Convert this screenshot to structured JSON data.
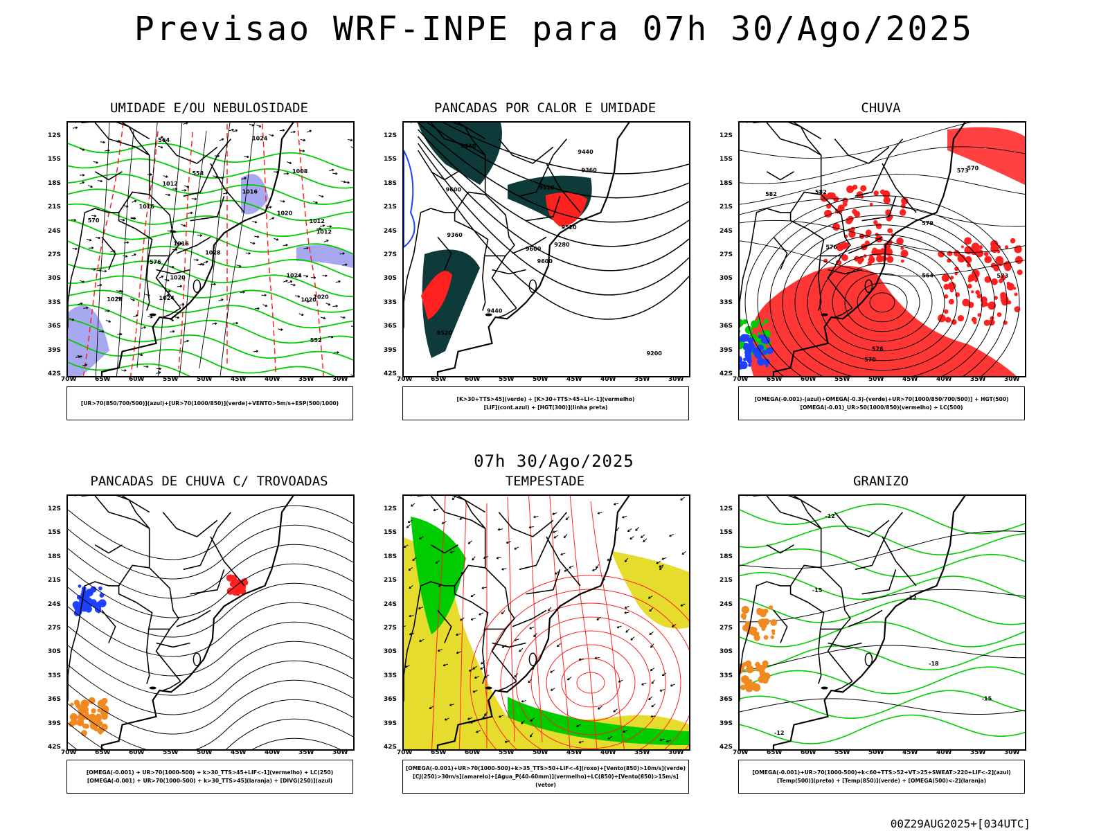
{
  "title": "Previsao WRF-INPE  para 07h 30/Ago/2025",
  "subtitle": "07h 30/Ago/2025",
  "footer": "00Z29AUG2025+[034UTC]",
  "axes": {
    "lat_ticks": [
      "12S",
      "15S",
      "18S",
      "21S",
      "24S",
      "27S",
      "30S",
      "33S",
      "36S",
      "39S",
      "42S"
    ],
    "lon_ticks": [
      "70W",
      "65W",
      "60W",
      "55W",
      "50W",
      "45W",
      "40W",
      "35W",
      "30W"
    ]
  },
  "colors": {
    "green": "#00cc00",
    "red": "#ff2020",
    "blue": "#2040ff",
    "lavender": "#a8a8f0",
    "dark_teal": "#0e3a3a",
    "yellow": "#e6dc2e",
    "orange": "#f08a20",
    "violet": "#6a6ae0"
  },
  "panels": [
    {
      "id": "umidade",
      "title": "UMIDADE E/OU NEBULOSIDADE",
      "legend": [
        "[UR>70(850/700/500)](azul)+[UR>70(1000/850)](verde)+VENTO>5m/s+ESP(500/1000)"
      ],
      "contour_labels": [
        "1012",
        "1012",
        "1016",
        "1012",
        "1016",
        "1020",
        "1020",
        "1024",
        "1020",
        "1008",
        "1016",
        "1024",
        "1020",
        "1024",
        "1028",
        "1028",
        "576",
        "570",
        "564",
        "558",
        "552"
      ]
    },
    {
      "id": "pancadas-calor",
      "title": "PANCADAS POR CALOR E UMIDADE",
      "legend": [
        "[K>30+TTS>45](verde) + [K>30+TTS>45+LI<-1](vermelho)",
        "[LIF](cont.azul) + [HGT(300)](linha preta)"
      ],
      "contour_labels": [
        "9600",
        "9600",
        "9600",
        "9520",
        "9520",
        "9440",
        "9440",
        "9520",
        "9360",
        "9280",
        "9440",
        "9200",
        "9360"
      ]
    },
    {
      "id": "chuva",
      "title": "CHUVA",
      "legend": [
        "[OMEGA(-0.001)-(azul)+OMEGA(-0.3)-(verde)+UR>70(1000/850/700/500)] + HGT(500)",
        "[OMEGA(-0.01)_UR>50(1000/850)(vermelho) + LC(500)"
      ],
      "contour_labels": [
        "582",
        "582",
        "579",
        "576",
        "573",
        "570",
        "564",
        "576",
        "570",
        "573"
      ]
    },
    {
      "id": "trovoadas",
      "title": "PANCADAS DE CHUVA C/ TROVOADAS",
      "legend": [
        "[OMEGA(-0.001) + UR>70(1000-500) + k>30_TTS>45+LIF<-1](vermelho) + LC(250)",
        "[OMEGA(-0.001) + UR>70(1000-500) + k>30_TTS>45](laranja) + [DIVG(250)](azul)"
      ]
    },
    {
      "id": "tempestade",
      "title": "TEMPESTADE",
      "legend": [
        "[OMEGA(-0.001)+UR>70(1000-500)+k>35_TTS>50+LIF<-4](roxo)+[Vento(850)>10m/s](verde)",
        "[CJ(250)>30m/s](amarelo)+[Agua_P(40-60mm)](vermelho)+LC(850)+[Vento(850)>15m/s](vetor)"
      ]
    },
    {
      "id": "granizo",
      "title": "GRANIZO",
      "legend": [
        "[OMEGA(-0.001)+UR>70(1000-500)+k<60+TTS>52+VT>25+SWEAT>220+LIF<-2](azul)",
        "[Temp(500)](preto) + [Temp(850)](verde) + [OMEGA(500)<-2](laranja)"
      ],
      "contour_labels": [
        "-12",
        "-15",
        "-12",
        "-15",
        "-18",
        "-12"
      ]
    }
  ]
}
